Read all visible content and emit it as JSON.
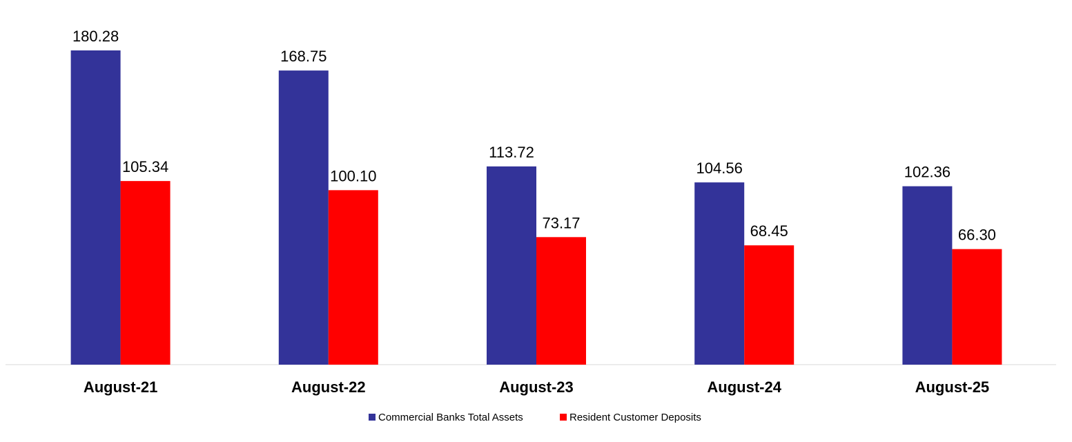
{
  "chart_data": {
    "type": "bar",
    "title": "",
    "xlabel": "",
    "ylabel": "",
    "ylim": [
      0,
      200
    ],
    "grid": false,
    "legend_position": "bottom-center",
    "categories": [
      "August-21",
      "August-22",
      "August-23",
      "August-24",
      "August-25"
    ],
    "series": [
      {
        "name": "Commercial Banks Total Assets",
        "color": "#333399",
        "values": [
          180.28,
          168.75,
          113.72,
          104.56,
          102.36
        ],
        "labels": [
          "180.28",
          "168.75",
          "113.72",
          "104.56",
          "102.36"
        ]
      },
      {
        "name": "Resident Customer Deposits",
        "color": "#ff0000",
        "values": [
          105.34,
          100.1,
          73.17,
          68.45,
          66.3
        ],
        "labels": [
          "105.34",
          "100.10",
          "73.17",
          "68.45",
          "66.30"
        ]
      }
    ]
  }
}
